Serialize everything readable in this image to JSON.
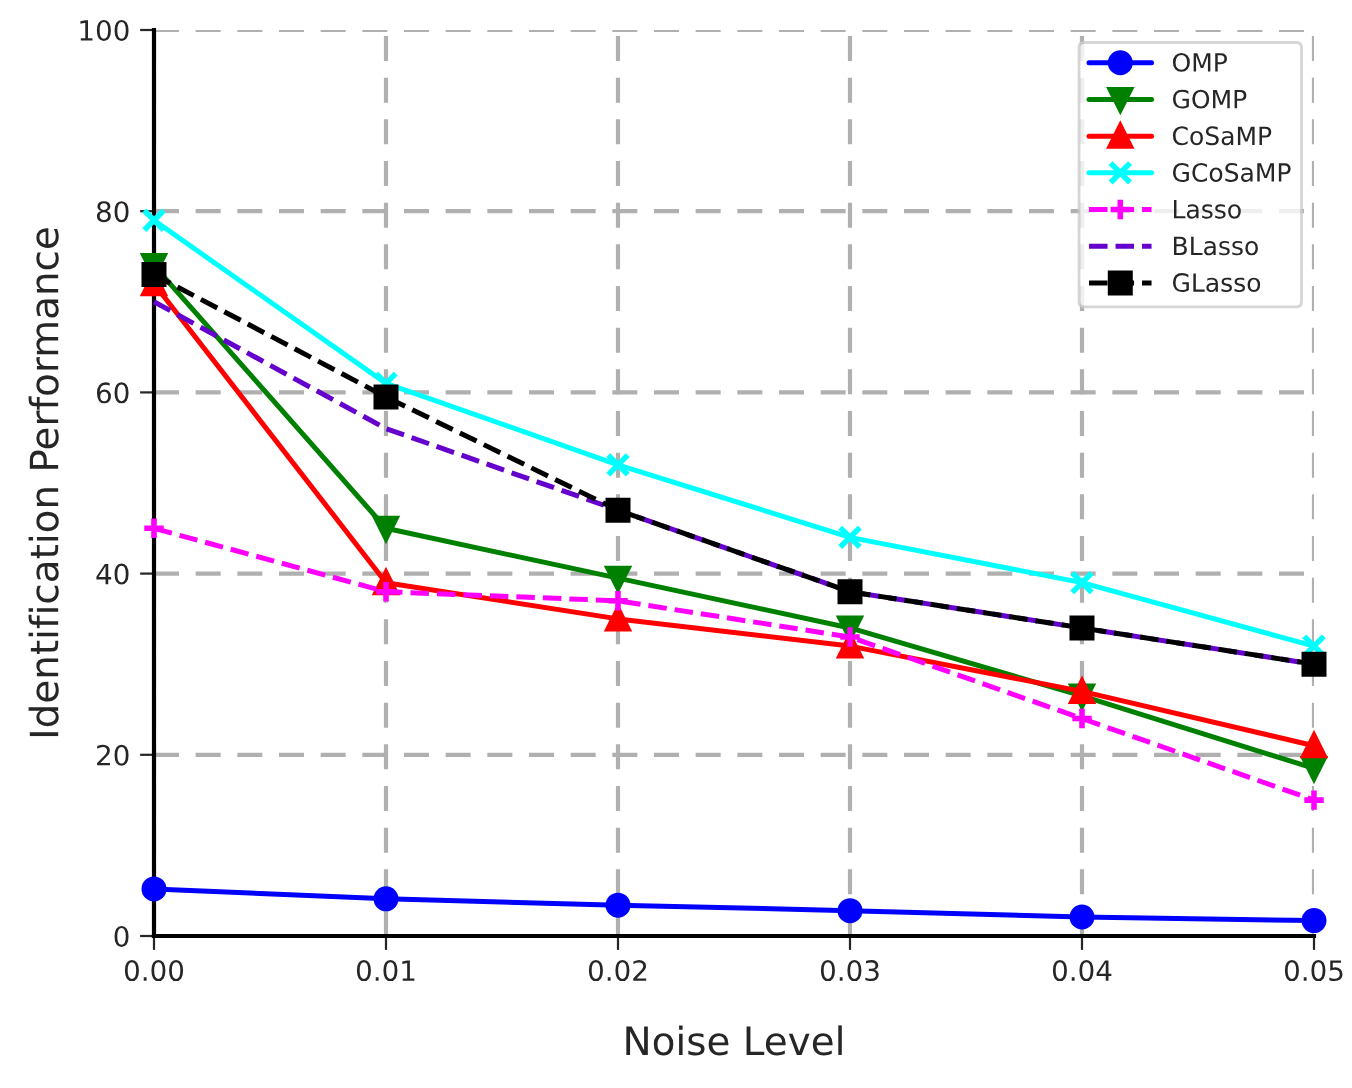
{
  "chart_data": {
    "type": "line",
    "xlabel": "Noise Level",
    "ylabel": "Identification Performance",
    "x": [
      0.0,
      0.01,
      0.02,
      0.03,
      0.04,
      0.05
    ],
    "xlim": [
      0,
      0.05
    ],
    "xticks": [
      {
        "value": 0,
        "label": "0.00"
      },
      0.01,
      0.02,
      0.03,
      0.04,
      0.05
    ],
    "ylim": [
      0,
      100
    ],
    "yticks": [
      0,
      20,
      40,
      60,
      80,
      100
    ],
    "grid": true,
    "legend": "top right",
    "series": [
      {
        "name": "OMP",
        "color": "#0000ff",
        "marker": "circle",
        "line_style": "solid",
        "values": [
          5.2,
          4.1,
          3.4,
          2.8,
          2.1,
          1.7
        ]
      },
      {
        "name": "GOMP",
        "color": "#008000",
        "marker": "triangle_down",
        "line_style": "solid",
        "values": [
          74,
          45,
          39.5,
          34,
          26.5,
          18.5
        ]
      },
      {
        "name": "CoSaMP",
        "color": "#ff0000",
        "marker": "triangle",
        "line_style": "solid",
        "values": [
          72,
          39,
          35,
          32,
          27,
          21
        ]
      },
      {
        "name": "GCoSaMP",
        "color": "#00ffff",
        "marker": "cross",
        "line_style": "solid",
        "values": [
          79,
          61,
          52,
          44,
          39,
          32
        ]
      },
      {
        "name": "Lasso",
        "color": "#ff00ff",
        "marker": "plus",
        "line_style": "dashed",
        "values": [
          45,
          38,
          37,
          33,
          24,
          15
        ]
      },
      {
        "name": "BLasso",
        "color": "#6600cc",
        "marker": "none",
        "line_style": "dashed",
        "values": [
          70,
          56,
          47,
          38,
          34,
          30
        ]
      },
      {
        "name": "GLasso",
        "color": "#000000",
        "marker": "square",
        "line_style": "dashed",
        "values": [
          73,
          59.5,
          47,
          38,
          34,
          30
        ]
      }
    ]
  }
}
